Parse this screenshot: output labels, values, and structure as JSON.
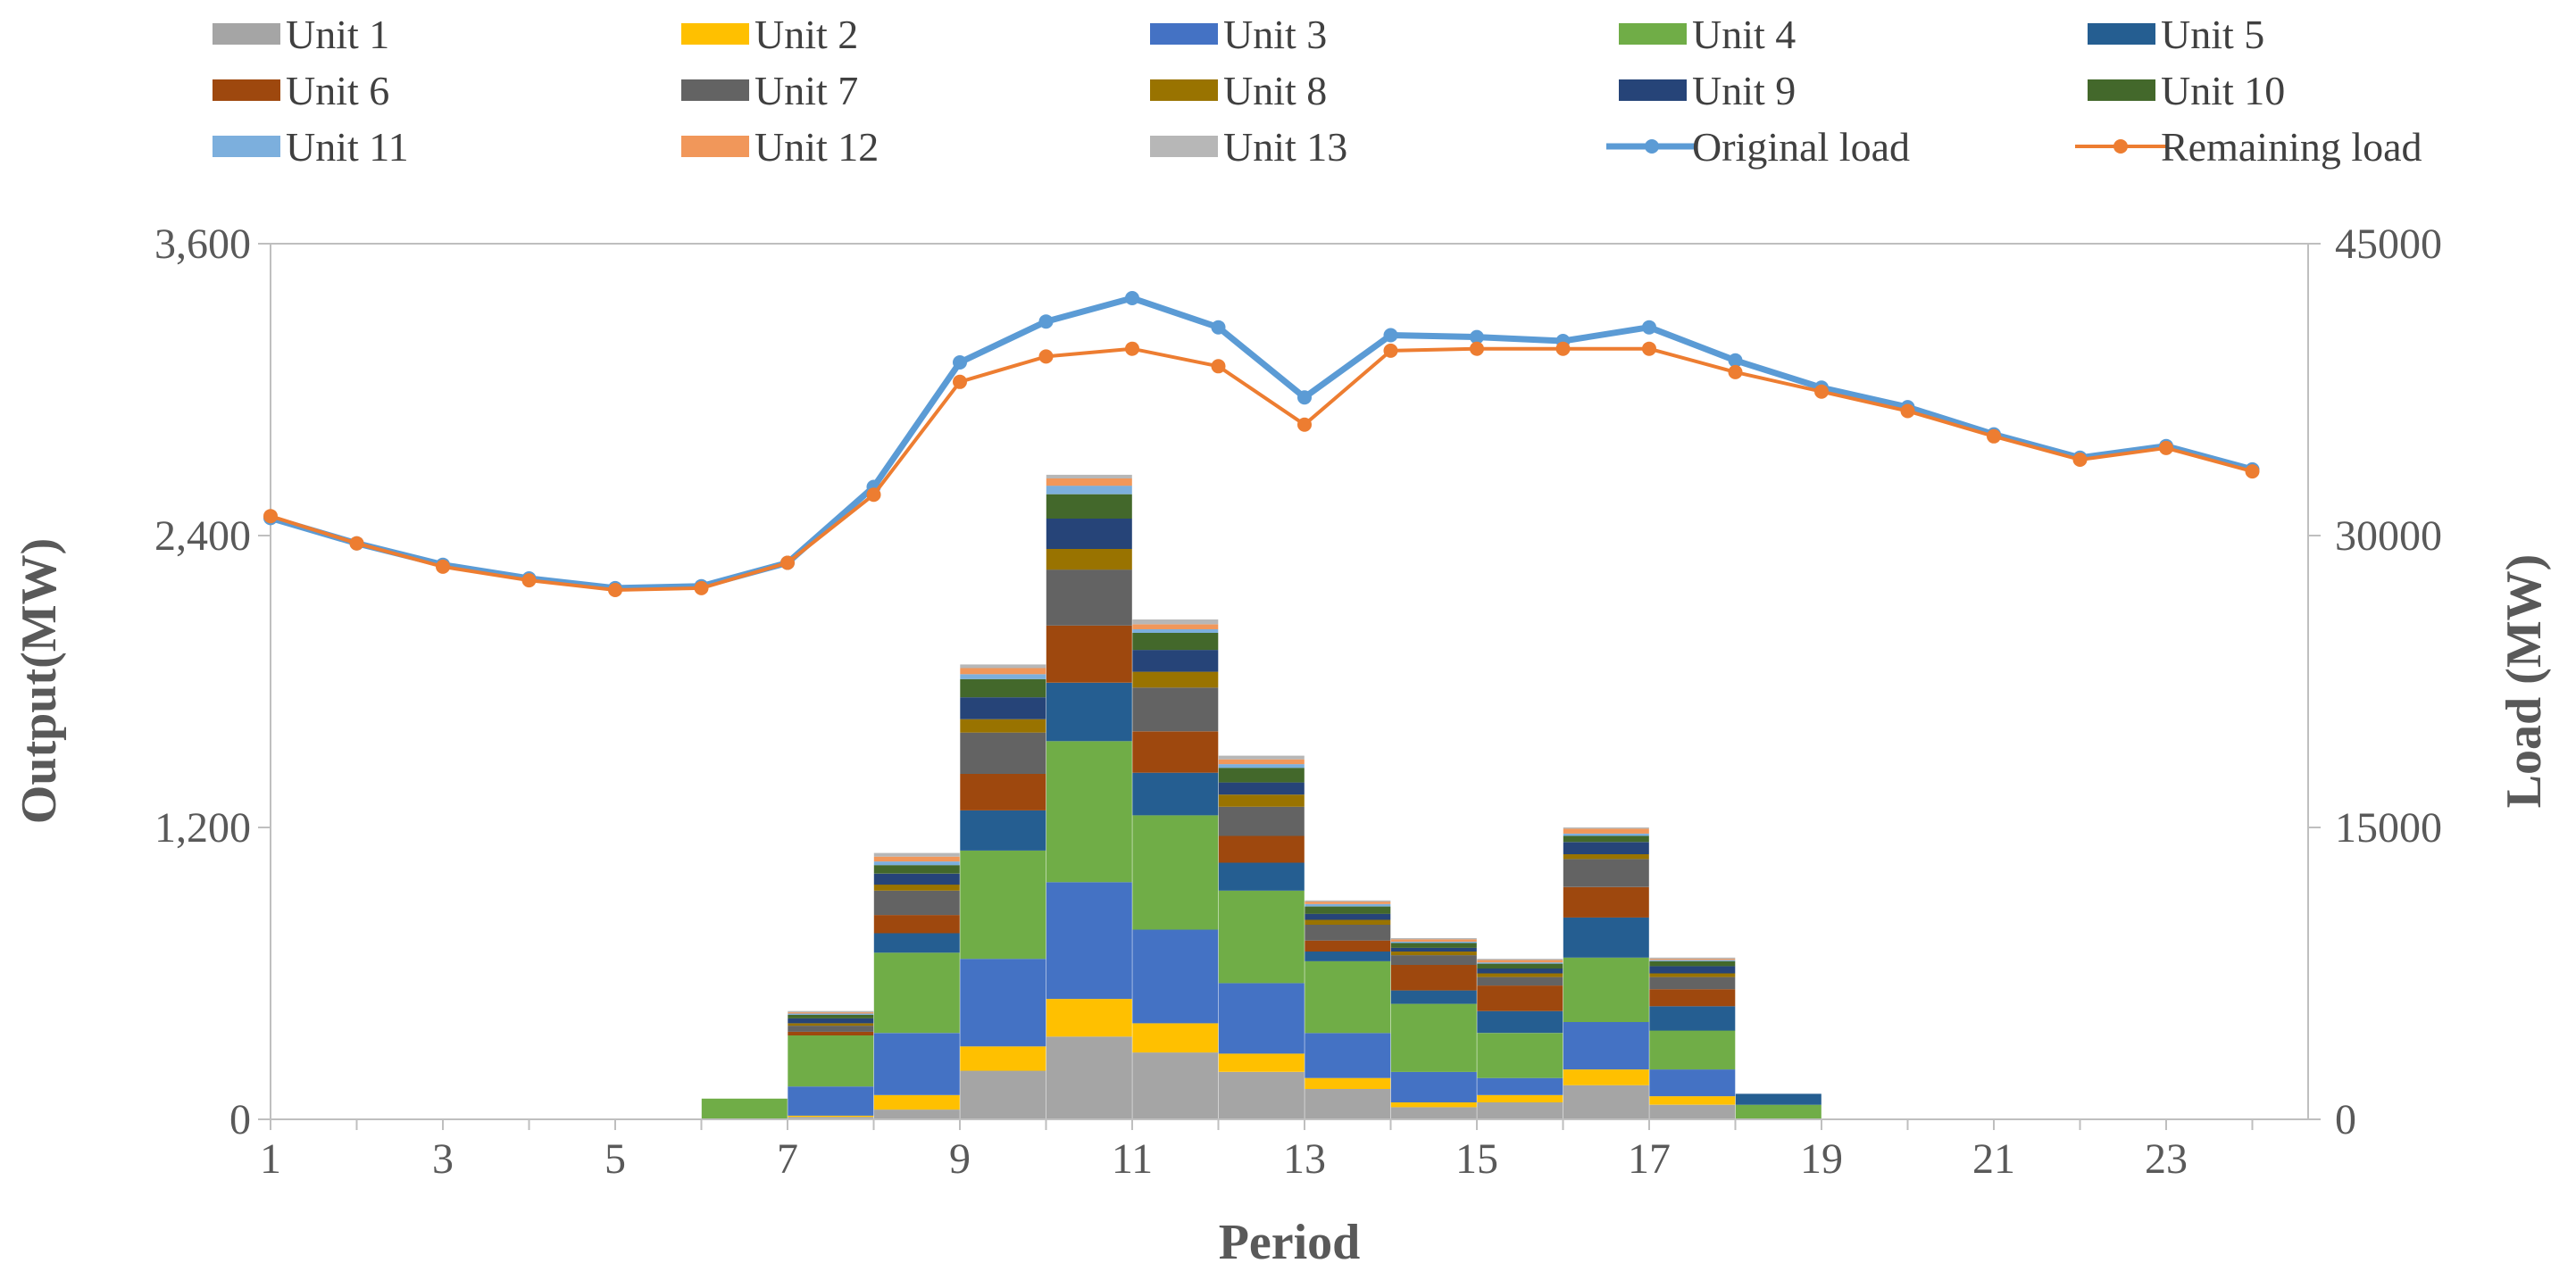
{
  "chart_data": {
    "type": "bar",
    "stacked": true,
    "xlabel": "Period",
    "ylabel": "Output(MW)",
    "y2label": "Load (MW)",
    "ylim": [
      0,
      3600
    ],
    "y2lim": [
      0,
      45000
    ],
    "y_ticks": [
      0,
      1200,
      2400,
      3600
    ],
    "y_tick_labels": [
      "0",
      "1,200",
      "2,400",
      "3,600"
    ],
    "y2_ticks": [
      0,
      15000,
      30000,
      45000
    ],
    "y2_tick_labels": [
      "0",
      "15000",
      "30000",
      "45000"
    ],
    "x_ticks": [
      1,
      3,
      5,
      7,
      9,
      11,
      13,
      15,
      17,
      19,
      21,
      23
    ],
    "x_tick_labels": [
      "1",
      "3",
      "5",
      "7",
      "9",
      "11",
      "13",
      "15",
      "17",
      "19",
      "21",
      "23"
    ],
    "periods": [
      1,
      2,
      3,
      4,
      5,
      6,
      7,
      8,
      9,
      10,
      11,
      12,
      13,
      14,
      15,
      16,
      17,
      18,
      19,
      20,
      21,
      22,
      23,
      24
    ],
    "legend_position": "top",
    "series": [
      {
        "name": "Unit 1",
        "color": "#A5A5A5",
        "values": [
          0,
          0,
          0,
          0,
          0,
          0,
          0,
          10,
          40,
          200,
          340,
          275,
          195,
          125,
          50,
          70,
          140,
          60,
          0,
          0,
          0,
          0,
          0,
          0
        ]
      },
      {
        "name": "Unit 2",
        "color": "#FFC000",
        "values": [
          0,
          0,
          0,
          0,
          0,
          0,
          0,
          5,
          60,
          100,
          155,
          120,
          75,
          45,
          20,
          30,
          65,
          35,
          0,
          0,
          0,
          0,
          0,
          0
        ]
      },
      {
        "name": "Unit 3",
        "color": "#4472C4",
        "values": [
          0,
          0,
          0,
          0,
          0,
          0,
          0,
          120,
          255,
          360,
          480,
          385,
          290,
          185,
          125,
          70,
          195,
          110,
          0,
          0,
          0,
          0,
          0,
          0
        ]
      },
      {
        "name": "Unit 4",
        "color": "#70AD47",
        "values": [
          0,
          0,
          0,
          0,
          0,
          0,
          85,
          210,
          330,
          445,
          580,
          470,
          380,
          295,
          280,
          185,
          265,
          160,
          60,
          0,
          0,
          0,
          0,
          0
        ]
      },
      {
        "name": "Unit 5",
        "color": "#255E91",
        "values": [
          0,
          0,
          0,
          0,
          0,
          0,
          0,
          0,
          80,
          165,
          240,
          175,
          115,
          40,
          55,
          90,
          165,
          100,
          45,
          0,
          0,
          0,
          0,
          0
        ]
      },
      {
        "name": "Unit 6",
        "color": "#9E480E",
        "values": [
          0,
          0,
          0,
          0,
          0,
          0,
          0,
          15,
          75,
          150,
          235,
          170,
          110,
          45,
          105,
          105,
          125,
          70,
          0,
          0,
          0,
          0,
          0,
          0
        ]
      },
      {
        "name": "Unit 7",
        "color": "#636363",
        "values": [
          0,
          0,
          0,
          0,
          0,
          0,
          0,
          25,
          100,
          170,
          230,
          180,
          120,
          65,
          40,
          35,
          115,
          50,
          0,
          0,
          0,
          0,
          0,
          0
        ]
      },
      {
        "name": "Unit 8",
        "color": "#997300",
        "values": [
          0,
          0,
          0,
          0,
          0,
          0,
          0,
          10,
          25,
          55,
          85,
          65,
          50,
          20,
          15,
          15,
          20,
          15,
          0,
          0,
          0,
          0,
          0,
          0
        ]
      },
      {
        "name": "Unit 9",
        "color": "#264478",
        "values": [
          0,
          0,
          0,
          0,
          0,
          0,
          0,
          20,
          45,
          90,
          125,
          90,
          50,
          25,
          15,
          20,
          50,
          30,
          0,
          0,
          0,
          0,
          0,
          0
        ]
      },
      {
        "name": "Unit 10",
        "color": "#43682B",
        "values": [
          0,
          0,
          0,
          0,
          0,
          0,
          0,
          15,
          35,
          75,
          100,
          70,
          60,
          30,
          20,
          20,
          25,
          20,
          0,
          0,
          0,
          0,
          0,
          0
        ]
      },
      {
        "name": "Unit 11",
        "color": "#7CAFDD",
        "values": [
          0,
          0,
          0,
          0,
          0,
          0,
          0,
          5,
          15,
          20,
          35,
          15,
          15,
          10,
          5,
          5,
          10,
          5,
          0,
          0,
          0,
          0,
          0,
          0
        ]
      },
      {
        "name": "Unit 12",
        "color": "#F1975A",
        "values": [
          0,
          0,
          0,
          0,
          0,
          0,
          0,
          5,
          20,
          25,
          30,
          20,
          20,
          10,
          10,
          10,
          20,
          5,
          0,
          0,
          0,
          0,
          0,
          0
        ]
      },
      {
        "name": "Unit 13",
        "color": "#B7B7B7",
        "values": [
          0,
          0,
          0,
          0,
          0,
          0,
          0,
          5,
          15,
          15,
          15,
          20,
          15,
          5,
          5,
          5,
          5,
          5,
          0,
          0,
          0,
          0,
          0,
          0
        ]
      }
    ],
    "lines": [
      {
        "name": "Original load",
        "color": "#5B9BD5",
        "axis": "right",
        "values": [
          30900,
          29600,
          28500,
          27800,
          27300,
          27400,
          28600,
          32500,
          38900,
          41000,
          42200,
          40700,
          37100,
          40300,
          40200,
          40000,
          40700,
          39000,
          37600,
          36600,
          35200,
          34000,
          34600,
          33400
        ]
      },
      {
        "name": "Remaining load",
        "color": "#ED7D31",
        "axis": "right",
        "values": [
          31000,
          29600,
          28400,
          27700,
          27200,
          27300,
          28600,
          32100,
          37900,
          39200,
          39600,
          38700,
          35700,
          39500,
          39600,
          39600,
          39600,
          38400,
          37400,
          36400,
          35100,
          33900,
          34500,
          33300
        ]
      }
    ]
  }
}
